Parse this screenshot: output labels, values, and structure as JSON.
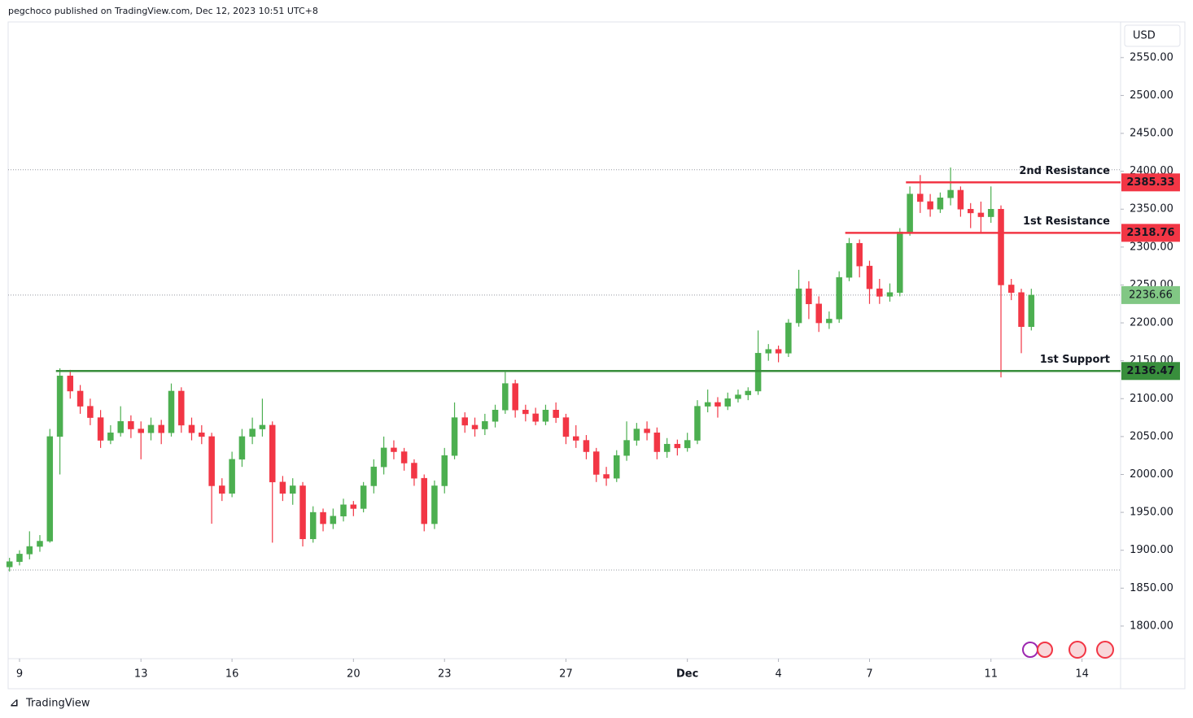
{
  "header": "pegchoco published on TradingView.com, Dec 12, 2023 10:51 UTC+8",
  "footer": "TradingView",
  "chart_data": {
    "type": "candlestick",
    "currency": "USD",
    "up_color": "#4caf50",
    "down_color": "#f23645",
    "xlim": [
      -0.375,
      36.27
    ],
    "ylim": [
      1757,
      2597
    ],
    "xticks": [
      {
        "value": 0,
        "label": "9"
      },
      {
        "value": 4,
        "label": "13"
      },
      {
        "value": 7,
        "label": "16"
      },
      {
        "value": 11,
        "label": "20"
      },
      {
        "value": 14,
        "label": "23"
      },
      {
        "value": 18,
        "label": "27"
      },
      {
        "value": 22,
        "label": "Dec"
      },
      {
        "value": 25,
        "label": "4"
      },
      {
        "value": 28,
        "label": "7"
      },
      {
        "value": 32,
        "label": "11"
      },
      {
        "value": 35,
        "label": "14"
      }
    ],
    "yticks": [
      {
        "value": 1800,
        "label": "1800.00"
      },
      {
        "value": 1850,
        "label": "1850.00"
      },
      {
        "value": 1900,
        "label": "1900.00"
      },
      {
        "value": 1950,
        "label": "1950.00"
      },
      {
        "value": 2000,
        "label": "2000.00"
      },
      {
        "value": 2050,
        "label": "2050.00"
      },
      {
        "value": 2100,
        "label": "2100.00"
      },
      {
        "value": 2150,
        "label": "2150.00"
      },
      {
        "value": 2200,
        "label": "2200.00"
      },
      {
        "value": 2250,
        "label": "2250.00"
      },
      {
        "value": 2300,
        "label": "2300.00"
      },
      {
        "value": 2350,
        "label": "2350.00"
      },
      {
        "value": 2400,
        "label": "2400.00"
      },
      {
        "value": 2450,
        "label": "2450.00"
      },
      {
        "value": 2500,
        "label": "2500.00"
      },
      {
        "value": 2550,
        "label": "2550.00"
      }
    ],
    "range_lines": [
      1874,
      2402
    ],
    "last_price": 2236.66,
    "last_price_color": "#81c784",
    "levels": [
      {
        "name": "2nd Resistance",
        "value": 2385.33,
        "color": "#f23645",
        "from_x": 29.2
      },
      {
        "name": "1st Resistance",
        "value": 2318.76,
        "color": "#f23645",
        "from_x": 27.2
      },
      {
        "name": "1st Support",
        "value": 2136.47,
        "color": "#388e3c",
        "from_x": 1.2
      }
    ],
    "x": [
      -0.33,
      0,
      0.33,
      0.67,
      1,
      1.33,
      1.67,
      2,
      2.33,
      2.67,
      3,
      3.33,
      3.67,
      4,
      4.33,
      4.67,
      5,
      5.33,
      5.67,
      6,
      6.33,
      6.67,
      7,
      7.33,
      7.67,
      8,
      8.33,
      8.67,
      9,
      9.33,
      9.67,
      10,
      10.33,
      10.67,
      11,
      11.33,
      11.67,
      12,
      12.33,
      12.67,
      13,
      13.33,
      13.67,
      14,
      14.33,
      14.67,
      15,
      15.33,
      15.67,
      16,
      16.33,
      16.67,
      17,
      17.33,
      17.67,
      18,
      18.33,
      18.67,
      19,
      19.33,
      19.67,
      20,
      20.33,
      20.67,
      21,
      21.33,
      21.67,
      22,
      22.33,
      22.67,
      23,
      23.33,
      23.67,
      24,
      24.33,
      24.67,
      25,
      25.33,
      25.67,
      26,
      26.33,
      26.67,
      27,
      27.33,
      27.67,
      28,
      28.33,
      28.67,
      29,
      29.33,
      29.67,
      30,
      30.33,
      30.67,
      31,
      31.33,
      31.67,
      32,
      32.33,
      32.67,
      33,
      33.33
    ],
    "candles": [
      [
        1878,
        1890,
        1872,
        1885
      ],
      [
        1885,
        1900,
        1880,
        1895
      ],
      [
        1895,
        1925,
        1888,
        1905
      ],
      [
        1905,
        1920,
        1898,
        1912
      ],
      [
        1912,
        2060,
        1910,
        2050
      ],
      [
        2050,
        2140,
        2000,
        2130
      ],
      [
        2130,
        2138,
        2100,
        2110
      ],
      [
        2110,
        2118,
        2080,
        2090
      ],
      [
        2090,
        2100,
        2065,
        2075
      ],
      [
        2075,
        2085,
        2035,
        2045
      ],
      [
        2045,
        2065,
        2040,
        2055
      ],
      [
        2055,
        2090,
        2050,
        2070
      ],
      [
        2070,
        2078,
        2048,
        2060
      ],
      [
        2060,
        2070,
        2020,
        2055
      ],
      [
        2055,
        2075,
        2045,
        2065
      ],
      [
        2065,
        2072,
        2040,
        2055
      ],
      [
        2055,
        2120,
        2050,
        2110
      ],
      [
        2110,
        2115,
        2055,
        2065
      ],
      [
        2065,
        2075,
        2045,
        2055
      ],
      [
        2055,
        2065,
        2040,
        2050
      ],
      [
        2050,
        2055,
        1935,
        1985
      ],
      [
        1985,
        1995,
        1965,
        1975
      ],
      [
        1975,
        2030,
        1970,
        2020
      ],
      [
        2020,
        2060,
        2010,
        2050
      ],
      [
        2050,
        2075,
        2040,
        2060
      ],
      [
        2060,
        2100,
        2050,
        2065
      ],
      [
        2065,
        2070,
        1910,
        1990
      ],
      [
        1990,
        1998,
        1965,
        1975
      ],
      [
        1975,
        1995,
        1960,
        1985
      ],
      [
        1985,
        1990,
        1905,
        1915
      ],
      [
        1915,
        1958,
        1910,
        1950
      ],
      [
        1950,
        1955,
        1925,
        1935
      ],
      [
        1935,
        1955,
        1928,
        1945
      ],
      [
        1945,
        1968,
        1938,
        1960
      ],
      [
        1960,
        1965,
        1945,
        1955
      ],
      [
        1955,
        1990,
        1950,
        1985
      ],
      [
        1985,
        2020,
        1975,
        2010
      ],
      [
        2010,
        2050,
        2000,
        2035
      ],
      [
        2035,
        2045,
        2020,
        2030
      ],
      [
        2030,
        2035,
        2005,
        2015
      ],
      [
        2015,
        2020,
        1985,
        1995
      ],
      [
        1995,
        2000,
        1925,
        1935
      ],
      [
        1935,
        1992,
        1928,
        1985
      ],
      [
        1985,
        2035,
        1975,
        2025
      ],
      [
        2025,
        2095,
        2020,
        2075
      ],
      [
        2075,
        2082,
        2055,
        2065
      ],
      [
        2065,
        2075,
        2050,
        2060
      ],
      [
        2060,
        2080,
        2052,
        2070
      ],
      [
        2070,
        2092,
        2062,
        2085
      ],
      [
        2085,
        2135,
        2080,
        2120
      ],
      [
        2120,
        2125,
        2075,
        2085
      ],
      [
        2085,
        2092,
        2070,
        2080
      ],
      [
        2080,
        2088,
        2065,
        2070
      ],
      [
        2070,
        2092,
        2065,
        2085
      ],
      [
        2085,
        2095,
        2068,
        2075
      ],
      [
        2075,
        2080,
        2040,
        2050
      ],
      [
        2050,
        2065,
        2035,
        2045
      ],
      [
        2045,
        2052,
        2020,
        2030
      ],
      [
        2030,
        2035,
        1990,
        2000
      ],
      [
        2000,
        2010,
        1985,
        1995
      ],
      [
        1995,
        2032,
        1990,
        2025
      ],
      [
        2025,
        2070,
        2018,
        2045
      ],
      [
        2045,
        2068,
        2038,
        2060
      ],
      [
        2060,
        2070,
        2045,
        2055
      ],
      [
        2055,
        2062,
        2020,
        2030
      ],
      [
        2030,
        2048,
        2022,
        2040
      ],
      [
        2040,
        2046,
        2025,
        2035
      ],
      [
        2035,
        2055,
        2030,
        2045
      ],
      [
        2045,
        2098,
        2040,
        2090
      ],
      [
        2090,
        2112,
        2082,
        2095
      ],
      [
        2095,
        2102,
        2075,
        2090
      ],
      [
        2090,
        2108,
        2085,
        2100
      ],
      [
        2100,
        2112,
        2095,
        2105
      ],
      [
        2105,
        2115,
        2098,
        2110
      ],
      [
        2110,
        2190,
        2105,
        2160
      ],
      [
        2160,
        2172,
        2150,
        2165
      ],
      [
        2165,
        2170,
        2148,
        2160
      ],
      [
        2160,
        2205,
        2155,
        2200
      ],
      [
        2200,
        2270,
        2195,
        2245
      ],
      [
        2245,
        2255,
        2205,
        2225
      ],
      [
        2225,
        2235,
        2188,
        2200
      ],
      [
        2200,
        2215,
        2192,
        2205
      ],
      [
        2205,
        2268,
        2200,
        2260
      ],
      [
        2260,
        2312,
        2255,
        2305
      ],
      [
        2305,
        2310,
        2260,
        2275
      ],
      [
        2275,
        2282,
        2225,
        2245
      ],
      [
        2245,
        2258,
        2225,
        2235
      ],
      [
        2235,
        2252,
        2228,
        2240
      ],
      [
        2240,
        2325,
        2235,
        2320
      ],
      [
        2320,
        2380,
        2315,
        2370
      ],
      [
        2370,
        2395,
        2345,
        2360
      ],
      [
        2360,
        2370,
        2340,
        2350
      ],
      [
        2350,
        2372,
        2345,
        2365
      ],
      [
        2365,
        2405,
        2355,
        2375
      ],
      [
        2375,
        2380,
        2340,
        2350
      ],
      [
        2350,
        2358,
        2325,
        2345
      ],
      [
        2345,
        2360,
        2318,
        2340
      ],
      [
        2340,
        2380,
        2332,
        2350
      ],
      [
        2350,
        2355,
        2128,
        2250
      ],
      [
        2250,
        2258,
        2230,
        2240
      ],
      [
        2240,
        2245,
        2160,
        2195
      ],
      [
        2195,
        2245,
        2190,
        2236.66
      ]
    ]
  }
}
